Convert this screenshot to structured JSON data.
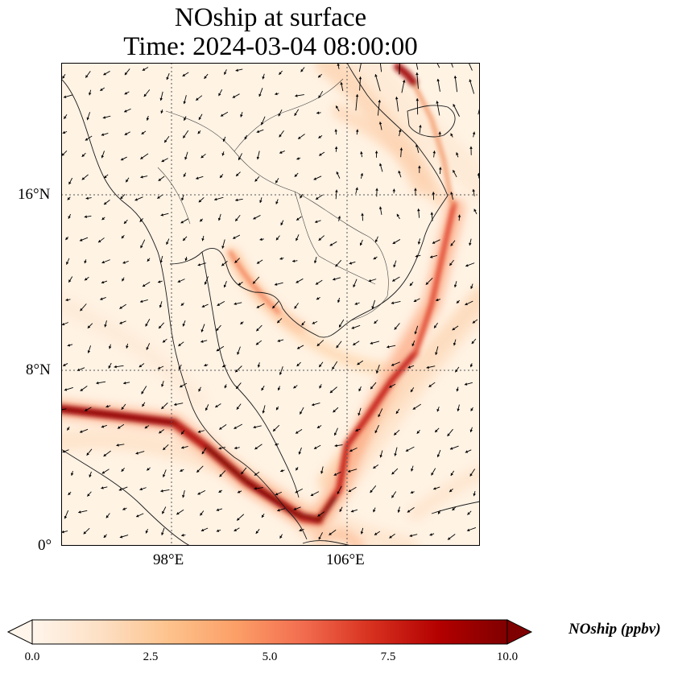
{
  "title": {
    "line1": "NOship at surface",
    "line2": "Time: 2024-03-04 08:00:00"
  },
  "map": {
    "variable": "NOship",
    "level": "surface",
    "lon_range": [
      93,
      112
    ],
    "lat_range": [
      0,
      22
    ],
    "gridlines": "dotted",
    "lat_ticks": [
      {
        "value": 16,
        "label": "16°N"
      },
      {
        "value": 8,
        "label": "8°N"
      },
      {
        "value": 0,
        "label": "0°"
      }
    ],
    "lon_ticks": [
      {
        "value": 98,
        "label": "98°E"
      },
      {
        "value": 106,
        "label": "106°E"
      }
    ],
    "colormap": [
      "#fff5eb",
      "#fee6ce",
      "#fdd0a2",
      "#fdae6b",
      "#fd8d3c",
      "#f16913",
      "#d94801",
      "#a63603",
      "#7f2704"
    ]
  },
  "colorbar": {
    "label": "NOship (ppbv)",
    "vmin": 0.0,
    "vmax": 10.0,
    "extend": "both",
    "ticks": [
      "0.0",
      "2.5",
      "5.0",
      "7.5",
      "10.0"
    ],
    "colors": [
      "#fff5eb",
      "#fde0c5",
      "#fdc38d",
      "#fc9f67",
      "#f26c4f",
      "#d7301f",
      "#b30000",
      "#7f0000"
    ]
  }
}
